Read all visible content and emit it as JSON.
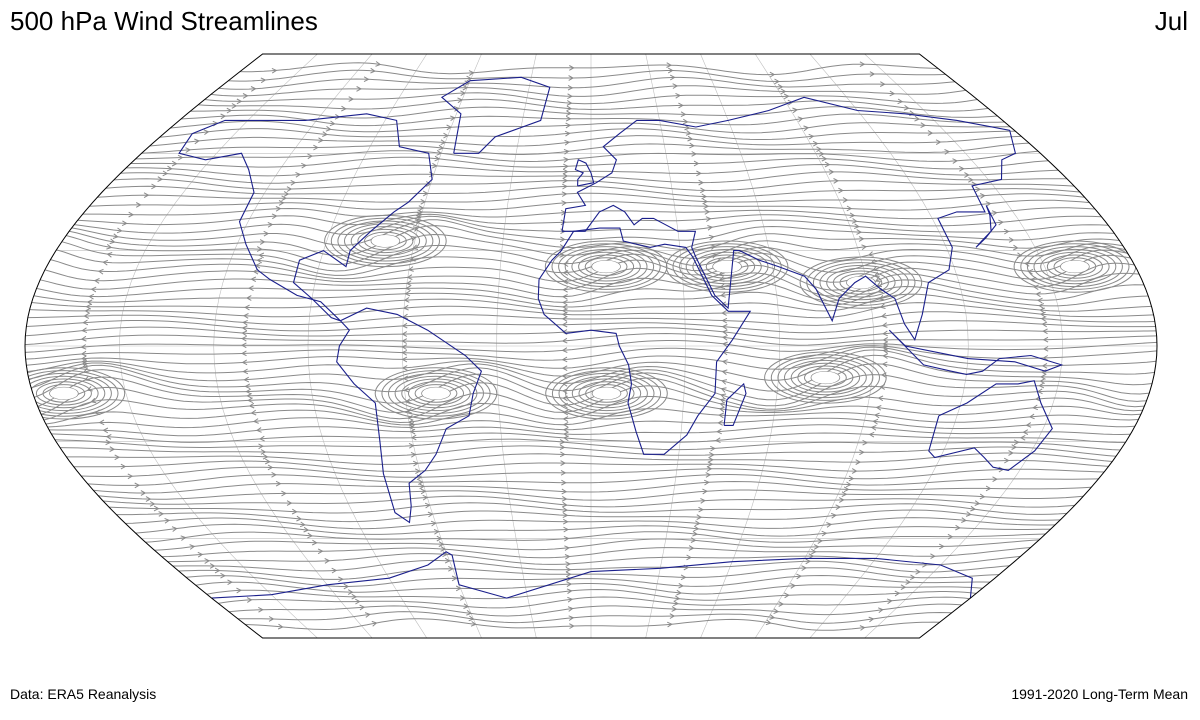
{
  "header": {
    "title": "500 hPa Wind Streamlines",
    "month": "Jul"
  },
  "footer": {
    "source": "Data: ERA5 Reanalysis",
    "period": "1991-2020 Long-Term Mean"
  },
  "map": {
    "projection": "robinson",
    "streamline_color": "#8a8a8a",
    "coastline_color": "#1a1f8c",
    "graticule_color": "#bfbfbf",
    "outline_color": "#000000",
    "features": [
      {
        "name": "north-atlantic-anticyclone",
        "lon": -70,
        "lat": 33
      },
      {
        "name": "sahara-anticyclone",
        "lon": 5,
        "lat": 25
      },
      {
        "name": "arabia-anticyclone",
        "lon": 45,
        "lat": 25
      },
      {
        "name": "tibet-anticyclone",
        "lon": 88,
        "lat": 20
      },
      {
        "name": "pacific-anticyclone",
        "lon": 160,
        "lat": 25
      },
      {
        "name": "south-america-anticyclone",
        "lon": -50,
        "lat": -15
      },
      {
        "name": "south-atlantic-anticyclone",
        "lon": 5,
        "lat": -15
      },
      {
        "name": "indian-ocean-anticyclone",
        "lon": 75,
        "lat": -10
      },
      {
        "name": "east-pacific-anticyclone",
        "lon": -170,
        "lat": -15
      }
    ]
  }
}
